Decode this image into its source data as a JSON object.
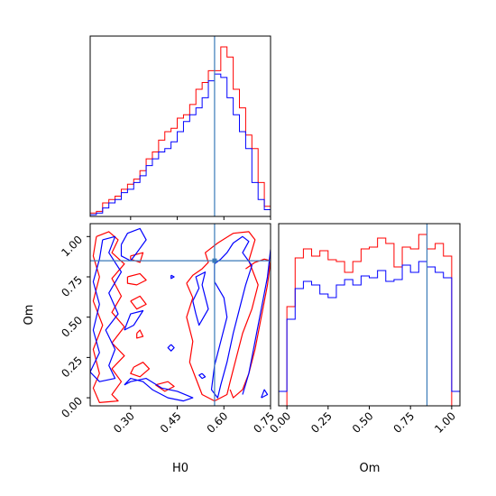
{
  "chart_data": [
    {
      "type": "histogram",
      "panel": "H0-marginal",
      "xlim": [
        0.17,
        0.75
      ],
      "truth": 0.57,
      "bin_edges": [
        0.17,
        0.19,
        0.21,
        0.23,
        0.25,
        0.27,
        0.29,
        0.31,
        0.33,
        0.35,
        0.37,
        0.39,
        0.41,
        0.43,
        0.45,
        0.47,
        0.49,
        0.51,
        0.53,
        0.55,
        0.57,
        0.59,
        0.61,
        0.63,
        0.65,
        0.67,
        0.69,
        0.71,
        0.73,
        0.75
      ],
      "series": [
        {
          "color": "#ff0000",
          "values": [
            2,
            3,
            8,
            10,
            12,
            16,
            19,
            22,
            27,
            34,
            38,
            45,
            50,
            52,
            58,
            60,
            66,
            75,
            79,
            86,
            86,
            100,
            94,
            75,
            64,
            48,
            40,
            20,
            6
          ]
        },
        {
          "color": "#0000ff",
          "values": [
            1,
            2,
            5,
            8,
            10,
            14,
            16,
            20,
            24,
            30,
            34,
            38,
            40,
            44,
            50,
            56,
            60,
            64,
            70,
            80,
            84,
            82,
            70,
            60,
            50,
            40,
            20,
            10,
            4
          ]
        }
      ]
    },
    {
      "type": "histogram",
      "panel": "Om-marginal",
      "xlabel": "Om",
      "xlim": [
        -0.05,
        1.05
      ],
      "xticks": [
        0.0,
        0.25,
        0.5,
        0.75,
        1.0
      ],
      "xtick_labels": [
        "0.00",
        "0.25",
        "0.50",
        "0.75",
        "1.00"
      ],
      "truth": 0.85,
      "bin_edges": [
        -0.05,
        0.0,
        0.05,
        0.1,
        0.15,
        0.2,
        0.25,
        0.3,
        0.35,
        0.4,
        0.45,
        0.5,
        0.55,
        0.6,
        0.65,
        0.7,
        0.75,
        0.8,
        0.85,
        0.9,
        0.95,
        1.0,
        1.05
      ],
      "series": [
        {
          "color": "#ff0000",
          "values": [
            0,
            55,
            82,
            87,
            83,
            86,
            81,
            80,
            74,
            80,
            87,
            88,
            93,
            90,
            77,
            88,
            87,
            95,
            87,
            90,
            83,
            0
          ]
        },
        {
          "color": "#0000ff",
          "values": [
            8,
            48,
            65,
            69,
            67,
            62,
            60,
            67,
            70,
            67,
            72,
            71,
            75,
            69,
            70,
            78,
            74,
            80,
            77,
            74,
            71,
            8
          ]
        }
      ]
    },
    {
      "type": "contour",
      "panel": "H0-Om-joint",
      "xlabel": "H0",
      "ylabel": "Om",
      "xlim": [
        0.17,
        0.75
      ],
      "ylim": [
        -0.05,
        1.08
      ],
      "xticks": [
        0.3,
        0.45,
        0.6,
        0.75
      ],
      "xtick_labels": [
        "0.30",
        "0.45",
        "0.60",
        "0.75"
      ],
      "yticks": [
        0.0,
        0.25,
        0.5,
        0.75,
        1.0
      ],
      "ytick_labels": [
        "0.00",
        "0.25",
        "0.50",
        "0.75",
        "1.00"
      ],
      "truth": {
        "x": 0.57,
        "y": 0.85
      },
      "series": [
        {
          "color": "#ff0000",
          "paths": [
            [
              [
                0.19,
                1.0
              ],
              [
                0.23,
                1.03
              ],
              [
                0.26,
                0.98
              ],
              [
                0.24,
                0.9
              ],
              [
                0.28,
                0.83
              ],
              [
                0.24,
                0.74
              ],
              [
                0.27,
                0.63
              ],
              [
                0.24,
                0.53
              ],
              [
                0.28,
                0.44
              ],
              [
                0.24,
                0.34
              ],
              [
                0.28,
                0.26
              ],
              [
                0.24,
                0.18
              ],
              [
                0.27,
                0.1
              ],
              [
                0.24,
                0.02
              ],
              [
                0.26,
                -0.02
              ],
              [
                0.2,
                -0.03
              ],
              [
                0.18,
                0.06
              ],
              [
                0.2,
                0.15
              ],
              [
                0.18,
                0.3
              ],
              [
                0.21,
                0.45
              ],
              [
                0.18,
                0.6
              ],
              [
                0.2,
                0.75
              ],
              [
                0.18,
                0.88
              ],
              [
                0.19,
                1.0
              ]
            ],
            [
              [
                0.29,
                0.75
              ],
              [
                0.33,
                0.77
              ],
              [
                0.35,
                0.73
              ],
              [
                0.32,
                0.7
              ],
              [
                0.29,
                0.71
              ],
              [
                0.29,
                0.75
              ]
            ],
            [
              [
                0.3,
                0.88
              ],
              [
                0.34,
                0.9
              ],
              [
                0.33,
                0.84
              ],
              [
                0.3,
                0.86
              ],
              [
                0.3,
                0.88
              ]
            ],
            [
              [
                0.31,
                0.19
              ],
              [
                0.34,
                0.22
              ],
              [
                0.36,
                0.18
              ],
              [
                0.33,
                0.13
              ],
              [
                0.3,
                0.15
              ],
              [
                0.31,
                0.19
              ]
            ],
            [
              [
                0.3,
                0.6
              ],
              [
                0.33,
                0.63
              ],
              [
                0.35,
                0.58
              ],
              [
                0.32,
                0.55
              ],
              [
                0.3,
                0.6
              ]
            ],
            [
              [
                0.32,
                0.4
              ],
              [
                0.33,
                0.42
              ],
              [
                0.34,
                0.38
              ],
              [
                0.32,
                0.37
              ],
              [
                0.32,
                0.4
              ]
            ],
            [
              [
                0.48,
                0.71
              ],
              [
                0.5,
                0.76
              ],
              [
                0.53,
                0.8
              ],
              [
                0.55,
                0.84
              ],
              [
                0.54,
                0.9
              ],
              [
                0.58,
                0.96
              ],
              [
                0.63,
                1.02
              ],
              [
                0.68,
                1.03
              ],
              [
                0.7,
                0.98
              ],
              [
                0.68,
                0.85
              ],
              [
                0.71,
                0.7
              ],
              [
                0.69,
                0.55
              ],
              [
                0.66,
                0.4
              ],
              [
                0.64,
                0.25
              ],
              [
                0.62,
                0.1
              ],
              [
                0.61,
                0.02
              ],
              [
                0.57,
                -0.02
              ],
              [
                0.53,
                0.02
              ],
              [
                0.51,
                0.12
              ],
              [
                0.49,
                0.22
              ],
              [
                0.5,
                0.35
              ],
              [
                0.48,
                0.5
              ],
              [
                0.5,
                0.62
              ],
              [
                0.48,
                0.71
              ]
            ],
            [
              [
                0.67,
                0.8
              ],
              [
                0.7,
                0.84
              ],
              [
                0.73,
                0.86
              ],
              [
                0.75,
                0.85
              ],
              [
                0.74,
                0.7
              ],
              [
                0.72,
                0.5
              ],
              [
                0.7,
                0.3
              ],
              [
                0.68,
                0.15
              ],
              [
                0.66,
                0.05
              ],
              [
                0.63,
                0.0
              ],
              [
                0.62,
                0.05
              ]
            ],
            [
              [
                0.38,
                0.08
              ],
              [
                0.42,
                0.1
              ],
              [
                0.44,
                0.07
              ],
              [
                0.41,
                0.04
              ],
              [
                0.38,
                0.08
              ]
            ]
          ]
        },
        {
          "color": "#0000ff",
          "paths": [
            [
              [
                0.21,
                0.98
              ],
              [
                0.25,
                1.0
              ],
              [
                0.23,
                0.9
              ],
              [
                0.27,
                0.78
              ],
              [
                0.23,
                0.65
              ],
              [
                0.26,
                0.52
              ],
              [
                0.22,
                0.42
              ],
              [
                0.25,
                0.3
              ],
              [
                0.23,
                0.2
              ],
              [
                0.25,
                0.12
              ],
              [
                0.2,
                0.1
              ],
              [
                0.17,
                0.16
              ],
              [
                0.2,
                0.28
              ],
              [
                0.18,
                0.42
              ],
              [
                0.2,
                0.58
              ],
              [
                0.18,
                0.72
              ],
              [
                0.2,
                0.86
              ],
              [
                0.21,
                0.98
              ]
            ],
            [
              [
                0.27,
                0.95
              ],
              [
                0.29,
                1.02
              ],
              [
                0.33,
                1.05
              ],
              [
                0.35,
                0.98
              ],
              [
                0.32,
                0.9
              ],
              [
                0.3,
                0.85
              ],
              [
                0.27,
                0.88
              ],
              [
                0.27,
                0.95
              ]
            ],
            [
              [
                0.28,
                0.42
              ],
              [
                0.3,
                0.52
              ],
              [
                0.34,
                0.54
              ],
              [
                0.31,
                0.45
              ],
              [
                0.28,
                0.42
              ]
            ],
            [
              [
                0.28,
                0.08
              ],
              [
                0.3,
                0.12
              ],
              [
                0.34,
                0.1
              ],
              [
                0.37,
                0.05
              ],
              [
                0.42,
                0.0
              ],
              [
                0.47,
                -0.02
              ],
              [
                0.5,
                0.0
              ],
              [
                0.45,
                0.04
              ],
              [
                0.4,
                0.06
              ],
              [
                0.35,
                0.12
              ],
              [
                0.3,
                0.1
              ],
              [
                0.28,
                0.08
              ]
            ],
            [
              [
                0.43,
                0.76
              ],
              [
                0.44,
                0.75
              ],
              [
                0.43,
                0.74
              ],
              [
                0.43,
                0.76
              ]
            ],
            [
              [
                0.43,
                0.33
              ],
              [
                0.44,
                0.31
              ],
              [
                0.43,
                0.29
              ],
              [
                0.42,
                0.31
              ],
              [
                0.43,
                0.33
              ]
            ],
            [
              [
                0.53,
                0.15
              ],
              [
                0.54,
                0.13
              ],
              [
                0.53,
                0.12
              ],
              [
                0.52,
                0.14
              ],
              [
                0.53,
                0.15
              ]
            ],
            [
              [
                0.5,
                0.6
              ],
              [
                0.52,
                0.68
              ],
              [
                0.51,
                0.75
              ],
              [
                0.54,
                0.78
              ],
              [
                0.53,
                0.7
              ],
              [
                0.55,
                0.55
              ],
              [
                0.52,
                0.45
              ],
              [
                0.51,
                0.52
              ],
              [
                0.5,
                0.6
              ]
            ],
            [
              [
                0.57,
                0.83
              ],
              [
                0.59,
                0.86
              ],
              [
                0.61,
                0.9
              ],
              [
                0.63,
                0.96
              ],
              [
                0.66,
                1.0
              ],
              [
                0.68,
                0.97
              ],
              [
                0.66,
                0.9
              ],
              [
                0.69,
                0.82
              ],
              [
                0.67,
                0.7
              ],
              [
                0.65,
                0.55
              ],
              [
                0.63,
                0.4
              ],
              [
                0.61,
                0.22
              ],
              [
                0.59,
                0.08
              ],
              [
                0.58,
                0.0
              ],
              [
                0.56,
                0.05
              ],
              [
                0.57,
                0.2
              ],
              [
                0.59,
                0.35
              ],
              [
                0.61,
                0.5
              ],
              [
                0.6,
                0.62
              ],
              [
                0.57,
                0.72
              ],
              [
                0.57,
                0.83
              ]
            ],
            [
              [
                0.66,
                0.02
              ],
              [
                0.68,
                0.15
              ],
              [
                0.7,
                0.35
              ],
              [
                0.72,
                0.55
              ],
              [
                0.74,
                0.75
              ],
              [
                0.75,
                0.92
              ]
            ],
            [
              [
                0.72,
                0.0
              ],
              [
                0.74,
                0.02
              ],
              [
                0.73,
                0.05
              ],
              [
                0.72,
                0.0
              ]
            ]
          ]
        }
      ]
    }
  ]
}
